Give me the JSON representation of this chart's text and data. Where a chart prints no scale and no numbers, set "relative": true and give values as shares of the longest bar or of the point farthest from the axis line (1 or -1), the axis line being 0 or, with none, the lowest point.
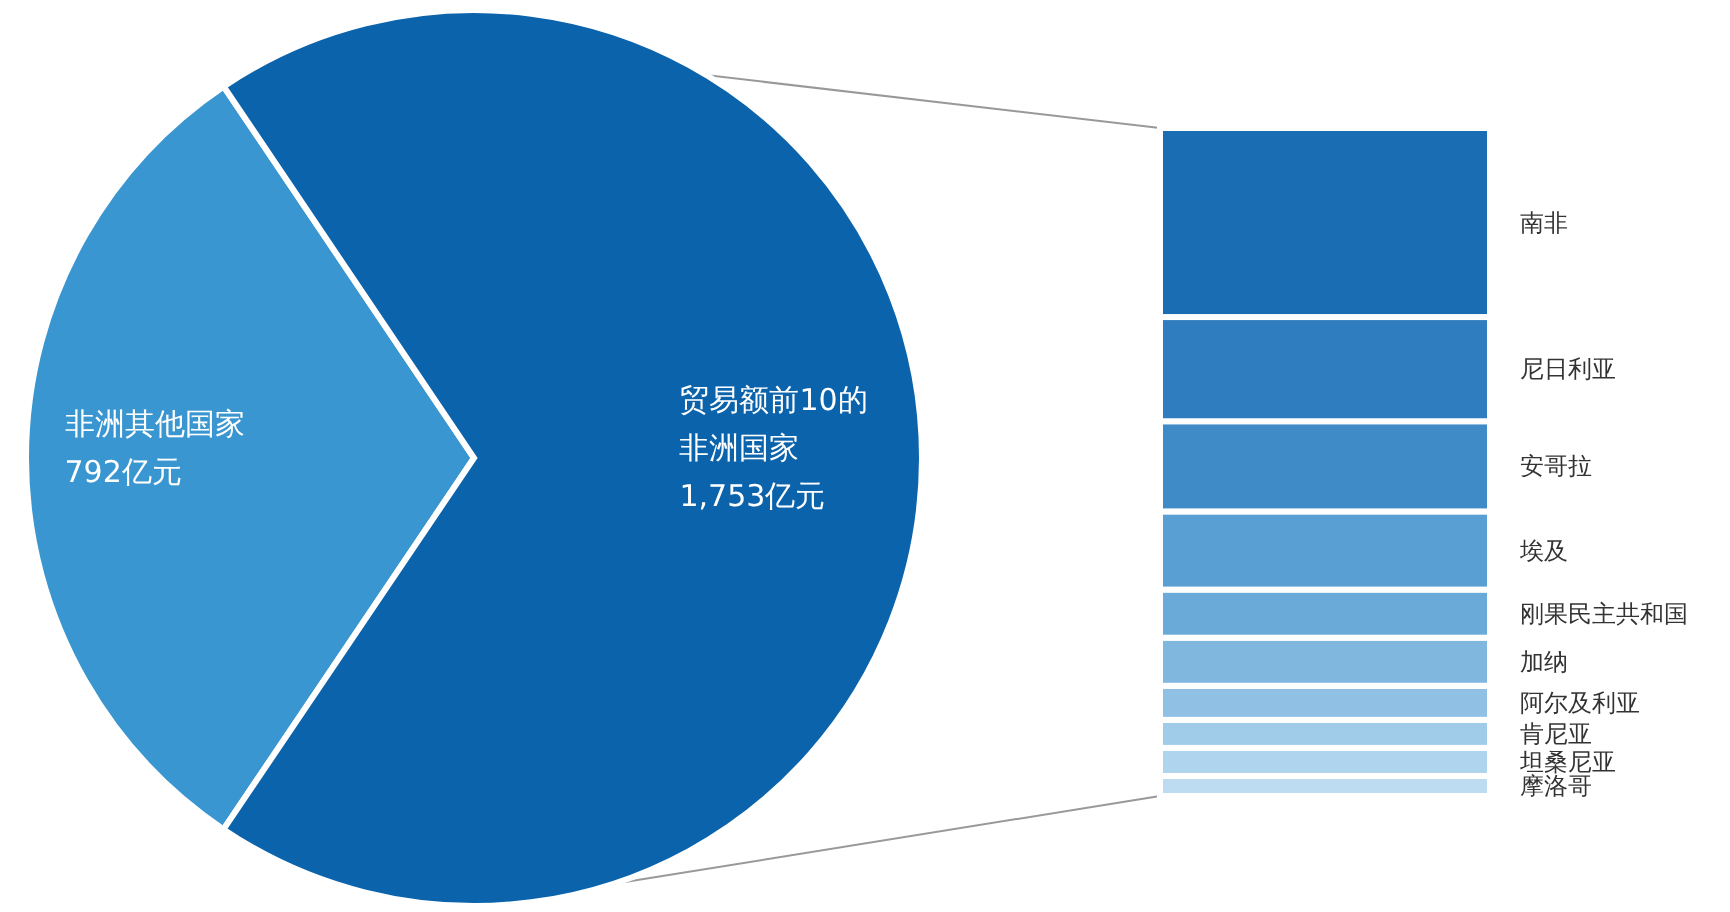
{
  "chart_data": [
    {
      "type": "pie",
      "categories": [
        "非洲其他国家",
        "贸易额前10的非洲国家"
      ],
      "values": [
        792,
        1753
      ],
      "colors": [
        "#3a96d0",
        "#0b63ab"
      ],
      "value_labels": [
        "792亿元",
        "1,753亿元"
      ]
    },
    {
      "type": "bar",
      "stacked": true,
      "relative": true,
      "categories": [
        null
      ],
      "series": [
        {
          "name": "摩洛哥",
          "color": "#bedcf1",
          "values": [
            0.03
          ]
        },
        {
          "name": "坦桑尼亚",
          "color": "#afd4ed",
          "values": [
            0.042
          ]
        },
        {
          "name": "肯尼亚",
          "color": "#a0cbe9",
          "values": [
            0.042
          ]
        },
        {
          "name": "阿尔及利亚",
          "color": "#90c1e4",
          "values": [
            0.051
          ]
        },
        {
          "name": "加纳",
          "color": "#7fb7df",
          "values": [
            0.072
          ]
        },
        {
          "name": "刚果民主共和国",
          "color": "#6aaad8",
          "values": [
            0.072
          ]
        },
        {
          "name": "埃及",
          "color": "#599fd3",
          "values": [
            0.117
          ]
        },
        {
          "name": "安哥拉",
          "color": "#3f8bc7",
          "values": [
            0.135
          ]
        },
        {
          "name": "尼日利亚",
          "color": "#2f7dbf",
          "values": [
            0.156
          ]
        },
        {
          "name": "南非",
          "color": "#1a6cb3",
          "values": [
            0.283
          ]
        }
      ]
    }
  ]
}
